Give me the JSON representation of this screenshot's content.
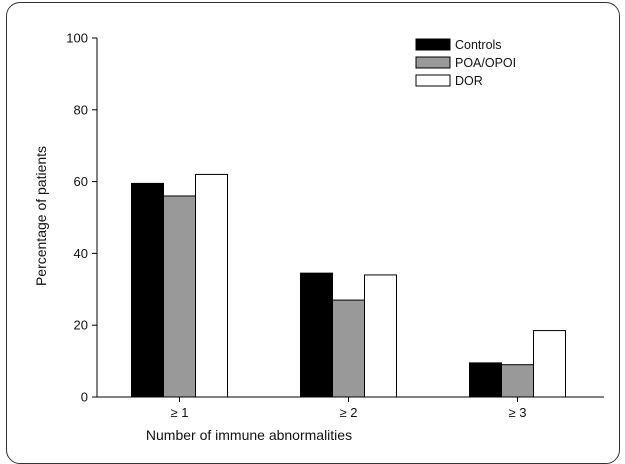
{
  "chart_data": {
    "type": "bar",
    "title": "",
    "xlabel": "Number of immune abnormalities",
    "ylabel": "Percentage of patients",
    "categories": [
      "≥ 1",
      "≥ 2",
      "≥ 3"
    ],
    "series": [
      {
        "name": "Controls",
        "values": [
          59.5,
          34.5,
          9.5
        ],
        "color": "#000000"
      },
      {
        "name": "POA/OPOI",
        "values": [
          56,
          27,
          9
        ],
        "color": "#999999"
      },
      {
        "name": "DOR",
        "values": [
          62,
          34,
          18.5
        ],
        "color": "#ffffff"
      }
    ],
    "ylim": [
      0,
      100
    ],
    "yticks": [
      "0",
      "20",
      "40",
      "60",
      "80",
      "100"
    ],
    "grid": false,
    "legend_position": "top-right"
  }
}
